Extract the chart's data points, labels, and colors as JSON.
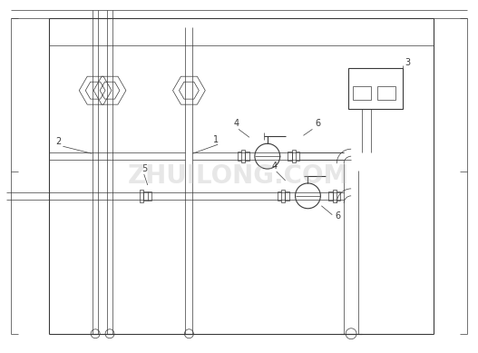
{
  "bg_color": "#ffffff",
  "line_color": "#3a3a3a",
  "watermark_color": "#bbbbbb",
  "fig_width": 5.27,
  "fig_height": 3.89,
  "dpi": 100,
  "watermark_text": "ZHUILONG.COM"
}
